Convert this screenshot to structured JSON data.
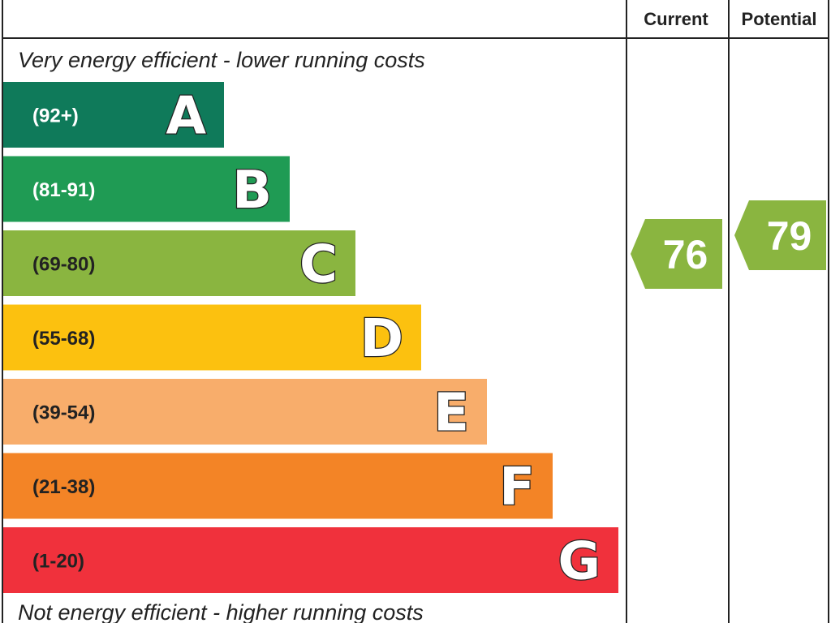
{
  "chart_data": {
    "type": "bar",
    "title": "",
    "header": {
      "current": "Current",
      "potential": "Potential"
    },
    "top_note": "Very energy efficient - lower running costs",
    "bottom_note": "Not energy efficient - higher running costs",
    "bands": [
      {
        "letter": "A",
        "range": "(92+)",
        "color": "#0f7a5a",
        "text_color": "#ffffff"
      },
      {
        "letter": "B",
        "range": "(81-91)",
        "color": "#1f9b54",
        "text_color": "#ffffff"
      },
      {
        "letter": "C",
        "range": "(69-80)",
        "color": "#8ab540",
        "text_color": "#222222"
      },
      {
        "letter": "D",
        "range": "(55-68)",
        "color": "#fcc10f",
        "text_color": "#222222"
      },
      {
        "letter": "E",
        "range": "(39-54)",
        "color": "#f8ad6b",
        "text_color": "#222222"
      },
      {
        "letter": "F",
        "range": "(21-38)",
        "color": "#f38426",
        "text_color": "#222222"
      },
      {
        "letter": "G",
        "range": "(1-20)",
        "color": "#f0313c",
        "text_color": "#222222"
      }
    ],
    "current": {
      "value": 76,
      "band": "C",
      "color": "#8ab540"
    },
    "potential": {
      "value": 79,
      "band": "C",
      "color": "#8ab540"
    }
  }
}
